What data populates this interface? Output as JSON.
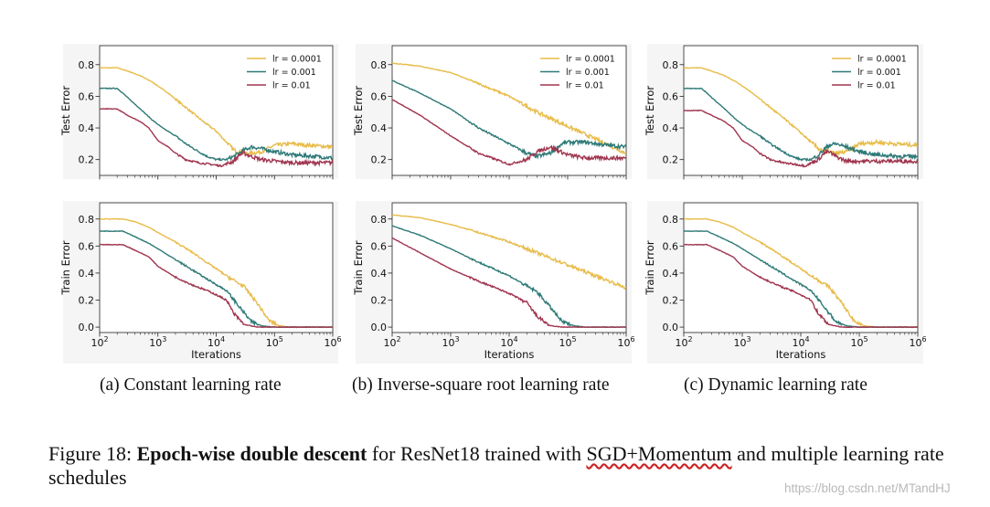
{
  "chart_data": [
    {
      "id": "a-test",
      "type": "line",
      "xscale": "log",
      "xlim": [
        100,
        1000000
      ],
      "ylim": [
        0.1,
        0.92
      ],
      "yticks": [
        0.2,
        0.4,
        0.6,
        0.8
      ],
      "ylabel": "Test Error",
      "xlabel": "",
      "legend": "top-right",
      "series": [
        {
          "name": "lr = 0.0001",
          "color": "#e8bc4a",
          "x": [
            100,
            200,
            300,
            500,
            800,
            1500,
            3000,
            6000,
            10000,
            15000,
            20000,
            25000,
            30000,
            40000,
            60000,
            100000,
            200000,
            400000,
            1000000
          ],
          "y": [
            0.78,
            0.78,
            0.76,
            0.73,
            0.69,
            0.62,
            0.53,
            0.44,
            0.38,
            0.31,
            0.26,
            0.25,
            0.24,
            0.24,
            0.25,
            0.29,
            0.3,
            0.29,
            0.28
          ]
        },
        {
          "name": "lr = 0.001",
          "color": "#2e7a77",
          "x": [
            100,
            200,
            250,
            350,
            500,
            800,
            1200,
            2000,
            3000,
            5000,
            7000,
            10000,
            15000,
            20000,
            30000,
            40000,
            60000,
            100000,
            200000,
            500000,
            1000000
          ],
          "y": [
            0.65,
            0.65,
            0.62,
            0.57,
            0.52,
            0.45,
            0.4,
            0.35,
            0.3,
            0.25,
            0.22,
            0.2,
            0.2,
            0.22,
            0.26,
            0.28,
            0.27,
            0.25,
            0.23,
            0.22,
            0.21
          ]
        },
        {
          "name": "lr = 0.01",
          "color": "#a0354f",
          "x": [
            100,
            200,
            300,
            500,
            700,
            1000,
            1500,
            2000,
            3000,
            5000,
            8000,
            12000,
            20000,
            25000,
            30000,
            40000,
            60000,
            100000,
            200000,
            1000000
          ],
          "y": [
            0.52,
            0.52,
            0.48,
            0.44,
            0.4,
            0.32,
            0.28,
            0.24,
            0.2,
            0.18,
            0.17,
            0.16,
            0.19,
            0.23,
            0.24,
            0.22,
            0.2,
            0.19,
            0.18,
            0.18
          ]
        }
      ]
    },
    {
      "id": "b-test",
      "type": "line",
      "xscale": "log",
      "xlim": [
        100,
        1000000
      ],
      "ylim": [
        0.1,
        0.92
      ],
      "yticks": [
        0.2,
        0.4,
        0.6,
        0.8
      ],
      "ylabel": "Test Error",
      "xlabel": "",
      "legend": "top-right",
      "series": [
        {
          "name": "lr = 0.0001",
          "color": "#e8bc4a",
          "x": [
            100,
            300,
            1000,
            3000,
            10000,
            30000,
            100000,
            300000,
            1000000
          ],
          "y": [
            0.81,
            0.79,
            0.75,
            0.68,
            0.6,
            0.5,
            0.41,
            0.33,
            0.24
          ]
        },
        {
          "name": "lr = 0.001",
          "color": "#2e7a77",
          "x": [
            100,
            300,
            1000,
            3000,
            10000,
            20000,
            30000,
            50000,
            80000,
            100000,
            200000,
            500000,
            1000000
          ],
          "y": [
            0.7,
            0.62,
            0.52,
            0.4,
            0.3,
            0.24,
            0.22,
            0.24,
            0.3,
            0.31,
            0.31,
            0.29,
            0.28
          ]
        },
        {
          "name": "lr = 0.01",
          "color": "#a0354f",
          "x": [
            100,
            300,
            1000,
            3000,
            10000,
            20000,
            30000,
            50000,
            100000,
            200000,
            1000000
          ],
          "y": [
            0.58,
            0.48,
            0.35,
            0.24,
            0.17,
            0.2,
            0.25,
            0.28,
            0.23,
            0.21,
            0.21
          ]
        }
      ]
    },
    {
      "id": "c-test",
      "type": "line",
      "xscale": "log",
      "xlim": [
        100,
        1000000
      ],
      "ylim": [
        0.1,
        0.92
      ],
      "yticks": [
        0.2,
        0.4,
        0.6,
        0.8
      ],
      "ylabel": "Test Error",
      "xlabel": "",
      "legend": "top-right",
      "series": [
        {
          "name": "lr = 0.0001",
          "color": "#e8bc4a",
          "x": [
            100,
            200,
            300,
            500,
            800,
            1500,
            3000,
            6000,
            10000,
            15000,
            20000,
            30000,
            40000,
            60000,
            100000,
            200000,
            400000,
            1000000
          ],
          "y": [
            0.78,
            0.78,
            0.76,
            0.73,
            0.69,
            0.62,
            0.53,
            0.44,
            0.37,
            0.31,
            0.27,
            0.25,
            0.24,
            0.25,
            0.3,
            0.31,
            0.3,
            0.29
          ]
        },
        {
          "name": "lr = 0.001",
          "color": "#2e7a77",
          "x": [
            100,
            200,
            250,
            350,
            500,
            800,
            1200,
            2000,
            3000,
            5000,
            7000,
            10000,
            15000,
            20000,
            30000,
            40000,
            60000,
            100000,
            200000,
            500000,
            1000000
          ],
          "y": [
            0.65,
            0.65,
            0.62,
            0.57,
            0.52,
            0.45,
            0.4,
            0.35,
            0.3,
            0.25,
            0.22,
            0.2,
            0.2,
            0.23,
            0.29,
            0.3,
            0.28,
            0.25,
            0.23,
            0.22,
            0.22
          ]
        },
        {
          "name": "lr = 0.01",
          "color": "#a0354f",
          "x": [
            100,
            200,
            300,
            500,
            700,
            1000,
            1500,
            2000,
            3000,
            5000,
            8000,
            12000,
            20000,
            25000,
            30000,
            40000,
            60000,
            100000,
            200000,
            1000000
          ],
          "y": [
            0.51,
            0.51,
            0.48,
            0.44,
            0.4,
            0.32,
            0.28,
            0.24,
            0.2,
            0.18,
            0.17,
            0.16,
            0.2,
            0.24,
            0.25,
            0.22,
            0.19,
            0.19,
            0.19,
            0.19
          ]
        }
      ]
    },
    {
      "id": "a-train",
      "type": "line",
      "xscale": "log",
      "xlim": [
        100,
        1000000
      ],
      "ylim": [
        -0.04,
        0.92
      ],
      "yticks": [
        0.0,
        0.2,
        0.4,
        0.6,
        0.8
      ],
      "ylabel": "Train Error",
      "xlabel": "Iterations",
      "xticks": [
        "10^2",
        "10^3",
        "10^4",
        "10^5",
        "10^6"
      ],
      "series": [
        {
          "name": "lr = 0.0001",
          "color": "#e8bc4a",
          "x": [
            100,
            250,
            400,
            700,
            1000,
            2000,
            4000,
            8000,
            15000,
            30000,
            50000,
            80000,
            120000,
            200000,
            1000000
          ],
          "y": [
            0.8,
            0.8,
            0.78,
            0.74,
            0.7,
            0.63,
            0.55,
            0.46,
            0.38,
            0.3,
            0.18,
            0.05,
            0.01,
            0.0,
            0.0
          ]
        },
        {
          "name": "lr = 0.001",
          "color": "#2e7a77",
          "x": [
            100,
            250,
            400,
            700,
            1000,
            2000,
            4000,
            8000,
            15000,
            25000,
            40000,
            60000,
            100000,
            1000000
          ],
          "y": [
            0.71,
            0.71,
            0.67,
            0.62,
            0.58,
            0.5,
            0.42,
            0.34,
            0.27,
            0.15,
            0.04,
            0.01,
            0.0,
            0.0
          ]
        },
        {
          "name": "lr = 0.01",
          "color": "#a0354f",
          "x": [
            100,
            250,
            400,
            700,
            1000,
            2000,
            4000,
            8000,
            15000,
            20000,
            30000,
            50000,
            100000,
            1000000
          ],
          "y": [
            0.61,
            0.61,
            0.57,
            0.52,
            0.45,
            0.37,
            0.31,
            0.26,
            0.2,
            0.1,
            0.02,
            0.0,
            0.0,
            0.0
          ]
        }
      ]
    },
    {
      "id": "b-train",
      "type": "line",
      "xscale": "log",
      "xlim": [
        100,
        1000000
      ],
      "ylim": [
        -0.04,
        0.92
      ],
      "yticks": [
        0.0,
        0.2,
        0.4,
        0.6,
        0.8
      ],
      "ylabel": "Train Error",
      "xlabel": "Iterations",
      "xticks": [
        "10^2",
        "10^3",
        "10^4",
        "10^5",
        "10^6"
      ],
      "series": [
        {
          "name": "lr = 0.0001",
          "color": "#e8bc4a",
          "x": [
            100,
            300,
            1000,
            3000,
            10000,
            30000,
            100000,
            300000,
            1000000
          ],
          "y": [
            0.83,
            0.81,
            0.76,
            0.7,
            0.63,
            0.55,
            0.46,
            0.38,
            0.29
          ]
        },
        {
          "name": "lr = 0.001",
          "color": "#2e7a77",
          "x": [
            100,
            300,
            1000,
            3000,
            10000,
            30000,
            50000,
            80000,
            130000,
            200000,
            1000000
          ],
          "y": [
            0.75,
            0.68,
            0.58,
            0.48,
            0.38,
            0.26,
            0.15,
            0.04,
            0.01,
            0.0,
            0.0
          ]
        },
        {
          "name": "lr = 0.01",
          "color": "#a0354f",
          "x": [
            100,
            300,
            1000,
            3000,
            10000,
            20000,
            30000,
            50000,
            80000,
            1000000
          ],
          "y": [
            0.66,
            0.55,
            0.43,
            0.34,
            0.25,
            0.18,
            0.08,
            0.01,
            0.0,
            0.0
          ]
        }
      ]
    },
    {
      "id": "c-train",
      "type": "line",
      "xscale": "log",
      "xlim": [
        100,
        1000000
      ],
      "ylim": [
        -0.04,
        0.92
      ],
      "yticks": [
        0.0,
        0.2,
        0.4,
        0.6,
        0.8
      ],
      "ylabel": "Train Error",
      "xlabel": "Iterations",
      "xticks": [
        "10^2",
        "10^3",
        "10^4",
        "10^5",
        "10^6"
      ],
      "series": [
        {
          "name": "lr = 0.0001",
          "color": "#e8bc4a",
          "x": [
            100,
            250,
            400,
            700,
            1000,
            2000,
            4000,
            8000,
            15000,
            30000,
            50000,
            80000,
            120000,
            200000,
            1000000
          ],
          "y": [
            0.8,
            0.8,
            0.78,
            0.74,
            0.7,
            0.63,
            0.55,
            0.46,
            0.38,
            0.3,
            0.18,
            0.05,
            0.01,
            0.0,
            0.0
          ]
        },
        {
          "name": "lr = 0.001",
          "color": "#2e7a77",
          "x": [
            100,
            250,
            400,
            700,
            1000,
            2000,
            4000,
            8000,
            15000,
            25000,
            40000,
            60000,
            100000,
            1000000
          ],
          "y": [
            0.71,
            0.71,
            0.67,
            0.62,
            0.58,
            0.5,
            0.42,
            0.34,
            0.27,
            0.15,
            0.04,
            0.01,
            0.0,
            0.0
          ]
        },
        {
          "name": "lr = 0.01",
          "color": "#a0354f",
          "x": [
            100,
            250,
            400,
            700,
            1000,
            2000,
            4000,
            8000,
            15000,
            20000,
            30000,
            50000,
            100000,
            1000000
          ],
          "y": [
            0.61,
            0.61,
            0.57,
            0.52,
            0.45,
            0.37,
            0.31,
            0.26,
            0.2,
            0.1,
            0.02,
            0.0,
            0.0,
            0.0
          ]
        }
      ]
    }
  ],
  "subcaptions": {
    "a": "(a) Constant learning rate",
    "b": "(b) Inverse-square root learning rate",
    "c": "(c) Dynamic learning rate"
  },
  "figure_caption": {
    "label": "Figure 18:",
    "bold": "Epoch-wise double descent",
    "text1": "for ResNet18 trained with",
    "underlined": "SGD+Momentum",
    "text2": "and multiple learning rate schedules"
  },
  "watermark": "https://blog.csdn.net/MTandHJ"
}
